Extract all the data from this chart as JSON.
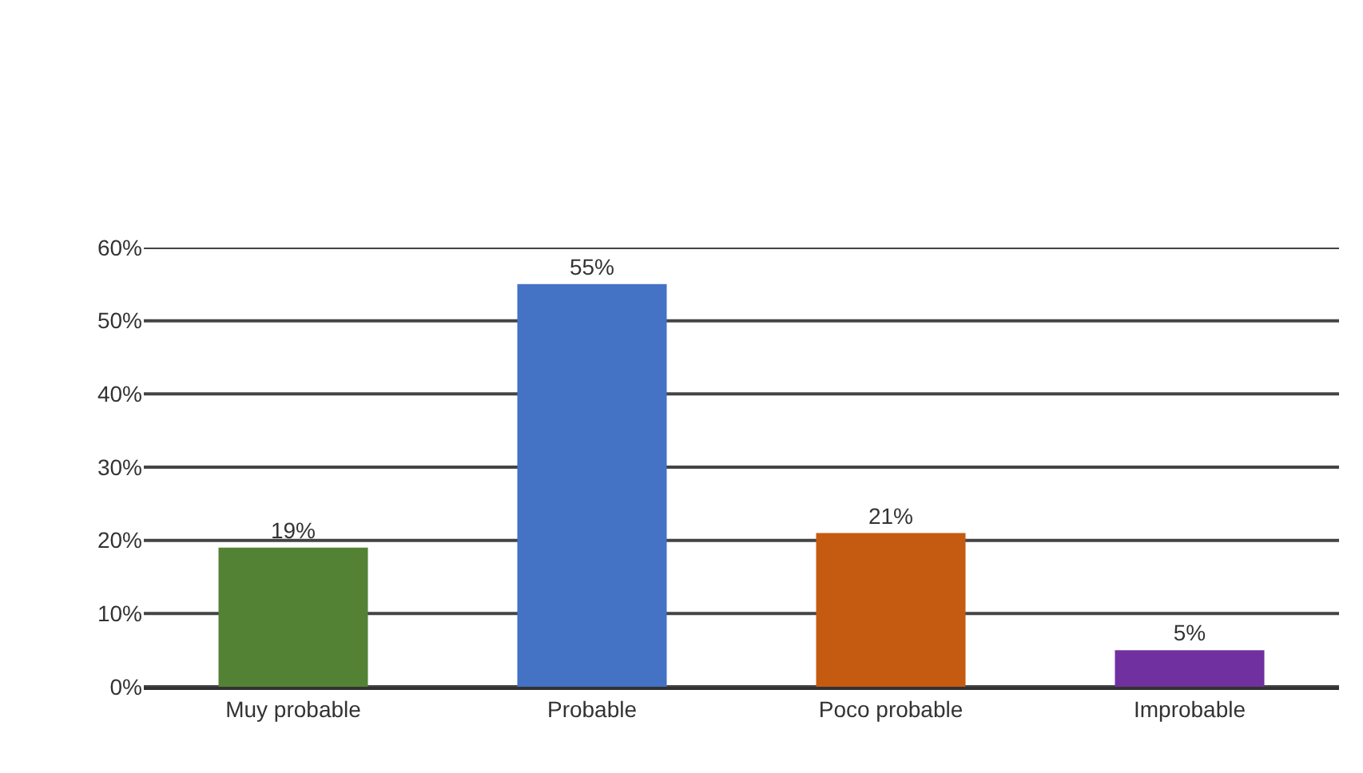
{
  "chart_data": {
    "type": "bar",
    "categories": [
      "Muy probable",
      "Probable",
      "Poco probable",
      "Improbable"
    ],
    "values": [
      19,
      55,
      21,
      5
    ],
    "colors": [
      "#548235",
      "#4472c4",
      "#c55a11",
      "#7030a0"
    ],
    "value_labels": [
      "19%",
      "55%",
      "21%",
      "5%"
    ],
    "ylim": [
      0,
      60
    ],
    "yticks": [
      {
        "value": 0,
        "label": "0%"
      },
      {
        "value": 10,
        "label": "10%"
      },
      {
        "value": 20,
        "label": "20%"
      },
      {
        "value": 30,
        "label": "30%"
      },
      {
        "value": 40,
        "label": "40%"
      },
      {
        "value": 50,
        "label": "50%"
      },
      {
        "value": 60,
        "label": "60%"
      }
    ],
    "grid": "y"
  }
}
